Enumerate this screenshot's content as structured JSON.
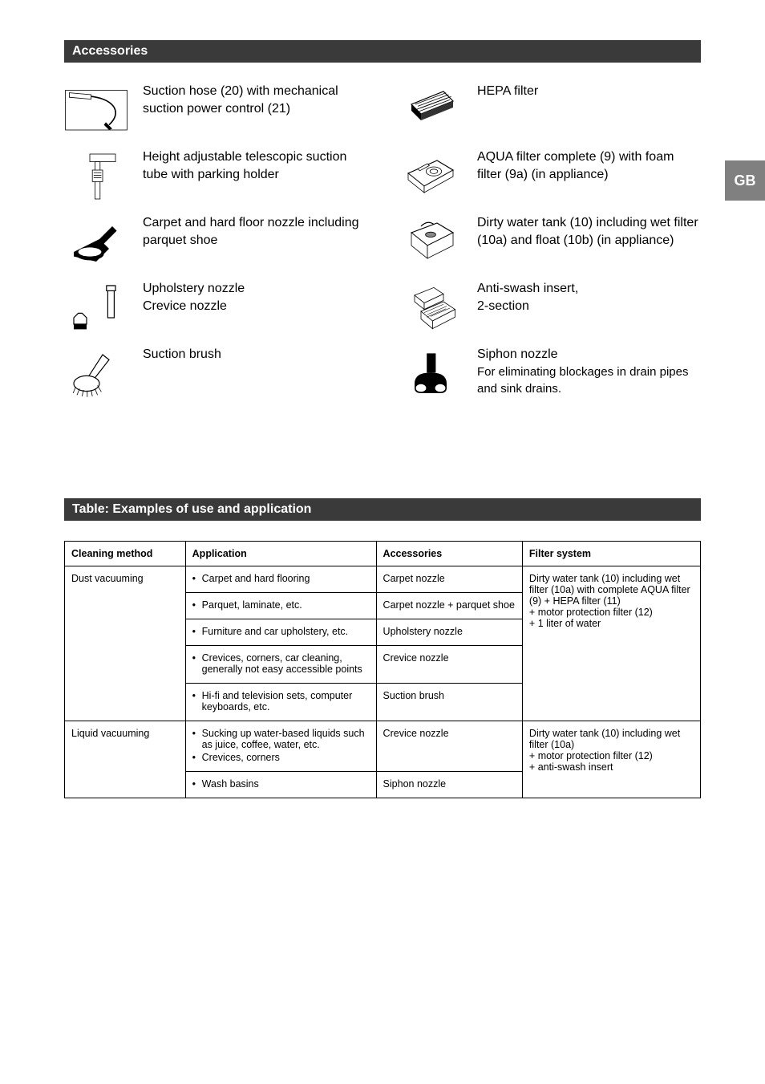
{
  "page": {
    "side_tab": "GB",
    "accessories_header": "Accessories",
    "table_header": "Table: Examples of use and application"
  },
  "accessories": {
    "left": [
      {
        "name": "suction-hose",
        "text": "Suction hose (20) with mechanical suction power control (21)"
      },
      {
        "name": "telescopic-tube",
        "text": "Height adjustable telescopic suction tube with parking holder"
      },
      {
        "name": "carpet-nozzle",
        "text": "Carpet and hard floor nozzle including parquet shoe"
      },
      {
        "name": "upholstery-crevice",
        "text": "Upholstery nozzle\nCrevice nozzle"
      },
      {
        "name": "suction-brush",
        "text": "Suction brush"
      }
    ],
    "right": [
      {
        "name": "hepa-filter",
        "text": "HEPA filter"
      },
      {
        "name": "aqua-filter",
        "text": "AQUA filter complete (9) with foam filter (9a) (in appliance)"
      },
      {
        "name": "dirty-water-tank",
        "text": "Dirty water tank (10) including wet filter (10a) and float (10b) (in appliance)"
      },
      {
        "name": "anti-swash",
        "text": "Anti-swash insert,\n2-section"
      },
      {
        "name": "siphon-nozzle",
        "text": "Siphon nozzle",
        "sub": "For eliminating blockages in drain pipes and sink drains."
      }
    ]
  },
  "table": {
    "columns": [
      "Cleaning method",
      "Application",
      "Accessories",
      "Filter system"
    ],
    "col_widths": [
      "19%",
      "30%",
      "23%",
      "28%"
    ],
    "groups": [
      {
        "method": "Dust vacuuming",
        "filter": "Dirty water tank (10) including wet filter (10a) with complete AQUA filter (9) + HEPA filter (11)\n+ motor protection filter (12)\n+ 1 liter of water",
        "rows": [
          {
            "app": [
              "Carpet and hard flooring"
            ],
            "acc": "Carpet nozzle"
          },
          {
            "app": [
              "Parquet, laminate, etc."
            ],
            "acc": "Carpet nozzle + parquet shoe"
          },
          {
            "app": [
              "Furniture and car upholstery, etc."
            ],
            "acc": "Upholstery nozzle"
          },
          {
            "app": [
              "Crevices, corners, car cleaning, generally not easy accessible points"
            ],
            "acc": "Crevice nozzle"
          },
          {
            "app": [
              "Hi-fi and television sets, computer keyboards, etc."
            ],
            "acc": "Suction brush"
          }
        ]
      },
      {
        "method": "Liquid vacuuming",
        "filter": "Dirty water tank (10) including wet filter (10a)\n+ motor protection filter (12)\n+ anti-swash insert",
        "rows": [
          {
            "app": [
              "Sucking up water-based liquids such as juice, coffee, water, etc.",
              "Crevices, corners"
            ],
            "acc": "Crevice nozzle"
          },
          {
            "app": [
              "Wash basins"
            ],
            "acc": "Siphon nozzle"
          }
        ]
      }
    ]
  },
  "colors": {
    "header_bg": "#3a3a3a",
    "header_text": "#ffffff",
    "side_tab_bg": "#808080",
    "border": "#000000",
    "body_bg": "#ffffff"
  }
}
